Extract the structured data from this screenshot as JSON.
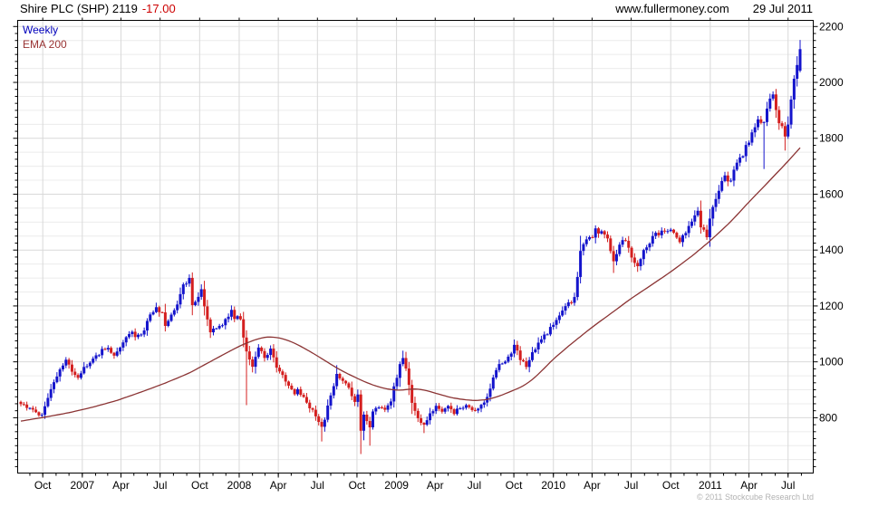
{
  "header": {
    "title": "Shire PLC (SHP) 2119",
    "change": "-17.00",
    "site": "www.fullermoney.com",
    "date": "29 Jul 2011"
  },
  "legend": {
    "weekly": "Weekly",
    "ema": "EMA 200"
  },
  "footer": {
    "copyright": "© 2011 Stockcube Research Ltd"
  },
  "colors": {
    "up_candle": "#1414cc",
    "down_candle": "#d41f1f",
    "ema_line": "#8b3434",
    "grid_minor": "#ececec",
    "grid_major": "#d9d9d9",
    "border": "#000000",
    "change_text": "#cc0000",
    "legend_weekly_text": "#0000bb",
    "legend_ema_text": "#993333",
    "copyright_text": "#b2b2b2",
    "axis_text": "#000000"
  },
  "chart_data": {
    "type": "candlestick_with_ema_line",
    "title": "Shire PLC (SHP) weekly candles with 200 EMA",
    "interval": "weekly",
    "first_week": "2006-08-11",
    "last_week": "2011-07-29",
    "last_price": 2119,
    "change": -17.0,
    "legend_position": "top-left",
    "grid": true,
    "y_axis": {
      "side": "right",
      "labels": [
        800,
        1000,
        1200,
        1400,
        1600,
        1800,
        2000,
        2200
      ],
      "label_step": 200,
      "minor_grid_step": 50,
      "minor_tick_step": 25,
      "price_at_bottom_border": 602,
      "price_at_top_border": 2222
    },
    "x_axis": {
      "tick_labels": [
        "Oct",
        "2007",
        "Apr",
        "Jul",
        "Oct",
        "2008",
        "Apr",
        "Jul",
        "Oct",
        "2009",
        "Apr",
        "Jul",
        "Oct",
        "2010",
        "Apr",
        "Jul",
        "Oct",
        "2011",
        "Apr",
        "Jul"
      ],
      "tick_interval": "quarterly",
      "minor_tick_interval": "monthly"
    },
    "weekly_close_keypoints": [
      [
        0,
        855
      ],
      [
        2,
        838
      ],
      [
        4,
        825
      ],
      [
        6,
        812
      ],
      [
        7,
        806
      ],
      [
        9,
        872
      ],
      [
        11,
        920
      ],
      [
        13,
        972
      ],
      [
        15,
        1008
      ],
      [
        16,
        985
      ],
      [
        17,
        962
      ],
      [
        19,
        948
      ],
      [
        21,
        978
      ],
      [
        24,
        1008
      ],
      [
        27,
        1040
      ],
      [
        29,
        1055
      ],
      [
        31,
        1018
      ],
      [
        33,
        1048
      ],
      [
        35,
        1085
      ],
      [
        37,
        1102
      ],
      [
        39,
        1092
      ],
      [
        41,
        1118
      ],
      [
        43,
        1165
      ],
      [
        45,
        1190
      ],
      [
        47,
        1178
      ],
      [
        48,
        1132
      ],
      [
        50,
        1162
      ],
      [
        52,
        1205
      ],
      [
        54,
        1270
      ],
      [
        56,
        1298
      ],
      [
        57,
        1198
      ],
      [
        58,
        1222
      ],
      [
        60,
        1252
      ],
      [
        62,
        1160
      ],
      [
        63,
        1102
      ],
      [
        65,
        1118
      ],
      [
        67,
        1135
      ],
      [
        69,
        1162
      ],
      [
        70,
        1180
      ],
      [
        71,
        1162
      ],
      [
        73,
        1152
      ],
      [
        74,
        1088
      ],
      [
        75,
        1045
      ],
      [
        76,
        1010
      ],
      [
        77,
        988
      ],
      [
        78,
        1020
      ],
      [
        79,
        1050
      ],
      [
        81,
        1015
      ],
      [
        83,
        1040
      ],
      [
        84,
        1008
      ],
      [
        85,
        982
      ],
      [
        87,
        948
      ],
      [
        89,
        922
      ],
      [
        91,
        888
      ],
      [
        92,
        905
      ],
      [
        94,
        872
      ],
      [
        96,
        838
      ],
      [
        98,
        810
      ],
      [
        100,
        765
      ],
      [
        101,
        798
      ],
      [
        103,
        885
      ],
      [
        105,
        955
      ],
      [
        107,
        938
      ],
      [
        109,
        905
      ],
      [
        111,
        858
      ],
      [
        112,
        880
      ],
      [
        113,
        755
      ],
      [
        114,
        805
      ],
      [
        116,
        768
      ],
      [
        117,
        820
      ],
      [
        119,
        842
      ],
      [
        121,
        828
      ],
      [
        123,
        862
      ],
      [
        124,
        908
      ],
      [
        126,
        988
      ],
      [
        127,
        1010
      ],
      [
        128,
        972
      ],
      [
        129,
        912
      ],
      [
        130,
        848
      ],
      [
        132,
        802
      ],
      [
        134,
        772
      ],
      [
        136,
        810
      ],
      [
        138,
        836
      ],
      [
        140,
        818
      ],
      [
        142,
        840
      ],
      [
        144,
        815
      ],
      [
        146,
        838
      ],
      [
        148,
        845
      ],
      [
        150,
        822
      ],
      [
        152,
        832
      ],
      [
        154,
        848
      ],
      [
        156,
        905
      ],
      [
        157,
        950
      ],
      [
        159,
        985
      ],
      [
        161,
        1008
      ],
      [
        163,
        1030
      ],
      [
        164,
        1058
      ],
      [
        166,
        1012
      ],
      [
        168,
        988
      ],
      [
        170,
        1035
      ],
      [
        172,
        1068
      ],
      [
        174,
        1092
      ],
      [
        176,
        1122
      ],
      [
        178,
        1155
      ],
      [
        180,
        1190
      ],
      [
        182,
        1212
      ],
      [
        184,
        1228
      ],
      [
        186,
        1398
      ],
      [
        188,
        1438
      ],
      [
        190,
        1452
      ],
      [
        191,
        1478
      ],
      [
        193,
        1462
      ],
      [
        195,
        1440
      ],
      [
        197,
        1352
      ],
      [
        199,
        1412
      ],
      [
        201,
        1442
      ],
      [
        203,
        1372
      ],
      [
        205,
        1342
      ],
      [
        207,
        1398
      ],
      [
        209,
        1428
      ],
      [
        211,
        1452
      ],
      [
        213,
        1468
      ],
      [
        215,
        1478
      ],
      [
        217,
        1452
      ],
      [
        219,
        1418
      ],
      [
        221,
        1468
      ],
      [
        223,
        1512
      ],
      [
        225,
        1535
      ],
      [
        226,
        1478
      ],
      [
        228,
        1448
      ],
      [
        229,
        1512
      ],
      [
        230,
        1555
      ],
      [
        232,
        1625
      ],
      [
        234,
        1665
      ],
      [
        236,
        1645
      ],
      [
        238,
        1705
      ],
      [
        240,
        1750
      ],
      [
        242,
        1795
      ],
      [
        244,
        1838
      ],
      [
        246,
        1868
      ],
      [
        247,
        1850
      ],
      [
        249,
        1942
      ],
      [
        250,
        1955
      ],
      [
        252,
        1868
      ],
      [
        254,
        1812
      ],
      [
        255,
        1860
      ],
      [
        256,
        1925
      ],
      [
        257,
        2005
      ],
      [
        258,
        2070
      ],
      [
        259,
        2119
      ]
    ],
    "spike_lows": [
      [
        75,
        845
      ],
      [
        100,
        715
      ],
      [
        113,
        670
      ],
      [
        116,
        700
      ],
      [
        134,
        745
      ],
      [
        197,
        1318
      ],
      [
        205,
        1322
      ],
      [
        247,
        1690
      ],
      [
        254,
        1756
      ]
    ],
    "spike_highs": [
      [
        56,
        1310
      ],
      [
        105,
        988
      ],
      [
        127,
        1040
      ],
      [
        164,
        1080
      ]
    ],
    "last_candle": {
      "open": 2042,
      "high": 2152,
      "low": 2036,
      "close": 2119
    },
    "ema_keypoints": [
      [
        0,
        788
      ],
      [
        8,
        802
      ],
      [
        16,
        818
      ],
      [
        24,
        838
      ],
      [
        32,
        862
      ],
      [
        40,
        892
      ],
      [
        48,
        924
      ],
      [
        56,
        960
      ],
      [
        62,
        995
      ],
      [
        68,
        1030
      ],
      [
        73,
        1058
      ],
      [
        78,
        1080
      ],
      [
        82,
        1090
      ],
      [
        86,
        1086
      ],
      [
        90,
        1072
      ],
      [
        94,
        1050
      ],
      [
        98,
        1025
      ],
      [
        102,
        998
      ],
      [
        106,
        972
      ],
      [
        110,
        950
      ],
      [
        114,
        930
      ],
      [
        118,
        913
      ],
      [
        122,
        902
      ],
      [
        126,
        898
      ],
      [
        129,
        902
      ],
      [
        132,
        903
      ],
      [
        135,
        897
      ],
      [
        139,
        884
      ],
      [
        143,
        872
      ],
      [
        147,
        865
      ],
      [
        151,
        861
      ],
      [
        155,
        865
      ],
      [
        159,
        877
      ],
      [
        163,
        895
      ],
      [
        167,
        913
      ],
      [
        171,
        945
      ],
      [
        177,
        1010
      ],
      [
        183,
        1065
      ],
      [
        190,
        1125
      ],
      [
        197,
        1180
      ],
      [
        203,
        1228
      ],
      [
        210,
        1278
      ],
      [
        216,
        1322
      ],
      [
        223,
        1378
      ],
      [
        229,
        1432
      ],
      [
        236,
        1502
      ],
      [
        242,
        1572
      ],
      [
        249,
        1650
      ],
      [
        255,
        1718
      ],
      [
        259,
        1766
      ]
    ],
    "render_hints": {
      "noise_pct": 0.8,
      "seed": 20110729,
      "weeks_total": 260
    }
  }
}
